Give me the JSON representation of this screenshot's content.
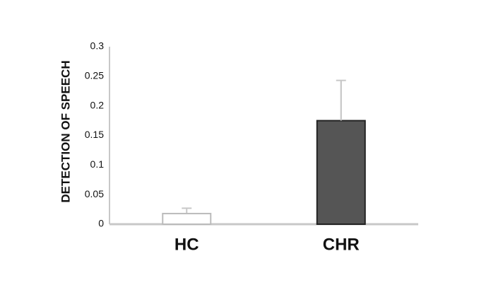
{
  "chart_data": {
    "type": "bar",
    "y_label": "DETECTION OF SPEECH",
    "categories": [
      "HC",
      "CHR"
    ],
    "values": [
      0.018,
      0.175
    ],
    "errors": [
      0.009,
      0.068
    ],
    "colors": [
      "#ffffff",
      "#555555"
    ],
    "ylim": [
      0,
      0.3
    ],
    "yticks": [
      0,
      0.05,
      0.1,
      0.15,
      0.2,
      0.25,
      0.3
    ],
    "grid": false
  }
}
